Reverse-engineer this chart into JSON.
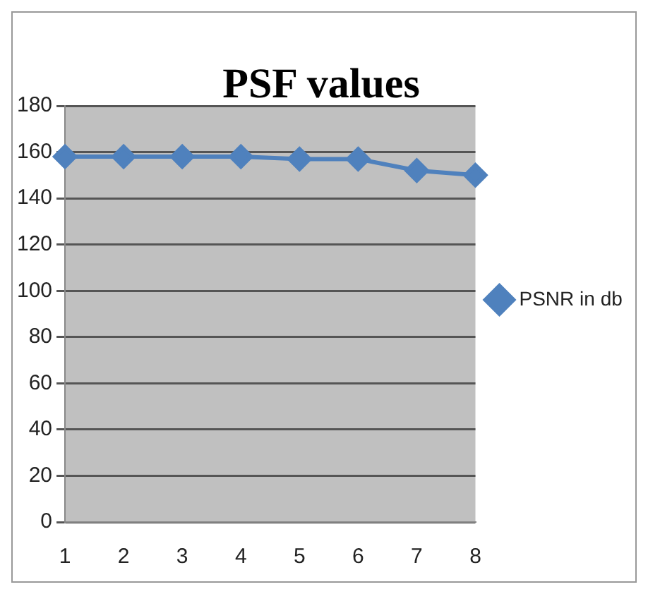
{
  "chart_data": {
    "type": "line",
    "title": "PSF values",
    "categories": [
      "1",
      "2",
      "3",
      "4",
      "5",
      "6",
      "7",
      "8"
    ],
    "series": [
      {
        "name": "PSNR in db",
        "color": "#4f81bd",
        "values": [
          158,
          158,
          158,
          158,
          157,
          157,
          152,
          150
        ]
      }
    ],
    "ylim": [
      0,
      180
    ],
    "yticks": [
      0,
      20,
      40,
      60,
      80,
      100,
      120,
      140,
      160,
      180
    ],
    "grid": "y",
    "legend": "right",
    "marker": "diamond",
    "line_style": "solid"
  }
}
